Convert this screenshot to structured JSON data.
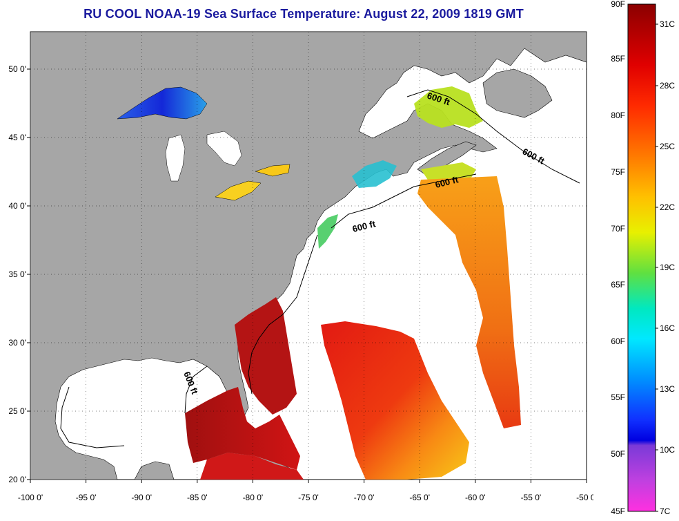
{
  "title": "RU COOL  NOAA-19  Sea Surface Temperature:  August 22, 2009 1819 GMT",
  "map": {
    "lon_ticks": [
      "-100 0'",
      "-95 0'",
      "-90 0'",
      "-85 0'",
      "-80 0'",
      "-75 0'",
      "-70 0'",
      "-65 0'",
      "-60 0'",
      "-55 0'",
      "-50 0'"
    ],
    "lat_ticks": [
      "50 0'",
      "45 0'",
      "40 0'",
      "35 0'",
      "30 0'",
      "25 0'",
      "20 0'"
    ],
    "contour_labels": [
      "600 ft",
      "600 ft",
      "600 ft",
      "600 ft",
      "600 ft"
    ],
    "land_color": "#a6a6a6",
    "ocean_color": "#ffffff"
  },
  "colorbar": {
    "fahrenheit_labels": [
      "90F",
      "85F",
      "80F",
      "75F",
      "70F",
      "65F",
      "60F",
      "55F",
      "50F",
      "45F"
    ],
    "celsius_labels": [
      "31C",
      "28C",
      "25C",
      "22C",
      "19C",
      "16C",
      "13C",
      "10C",
      "7C"
    ]
  }
}
